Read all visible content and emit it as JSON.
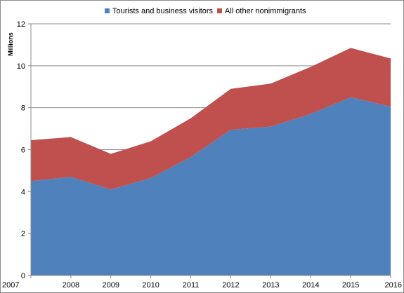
{
  "chart_data": {
    "type": "area",
    "stacked": true,
    "title": "",
    "xlabel": "",
    "ylabel": "Millions",
    "ylim": [
      0,
      12
    ],
    "yticks": [
      "0",
      "2",
      "4",
      "6",
      "8",
      "10",
      "12"
    ],
    "categories": [
      "2007",
      "2008",
      "2009",
      "2010",
      "2011",
      "2012",
      "2013",
      "2014",
      "2015",
      "2016"
    ],
    "series": [
      {
        "name": "Tourists and business visitors",
        "color": "#4f81bd",
        "values": [
          4.5,
          4.7,
          4.1,
          4.65,
          5.65,
          6.95,
          7.1,
          7.7,
          8.5,
          8.05
        ]
      },
      {
        "name": "All other nonimmigrants",
        "color": "#c0504d",
        "values": [
          1.95,
          1.9,
          1.7,
          1.75,
          1.85,
          1.95,
          2.05,
          2.25,
          2.35,
          2.3
        ]
      }
    ],
    "grid": "horizontal",
    "legend_position": "top"
  }
}
